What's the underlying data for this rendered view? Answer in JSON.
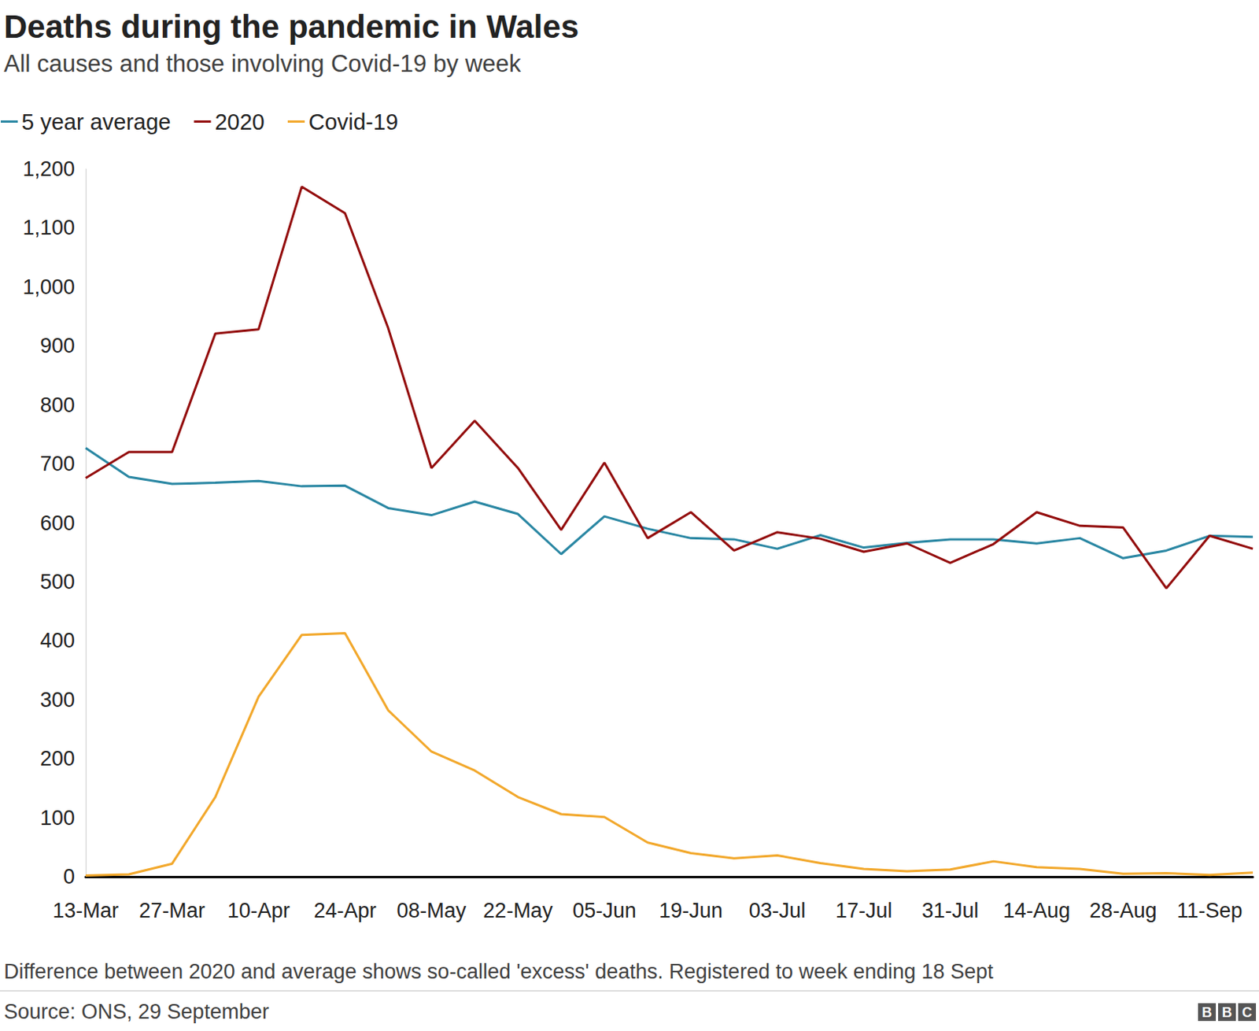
{
  "chart_data": {
    "type": "line",
    "title": "Deaths during the pandemic in Wales",
    "subtitle": "All causes and those involving Covid-19 by week",
    "caption": "Difference between 2020 and average shows so-called 'excess' deaths. Registered to week ending 18 Sept",
    "source": "Source: ONS, 29 September",
    "logo": "BBC",
    "categories": [
      "13-Mar",
      null,
      "27-Mar",
      null,
      "10-Apr",
      null,
      "24-Apr",
      null,
      "08-May",
      null,
      "22-May",
      null,
      "05-Jun",
      null,
      "19-Jun",
      null,
      "03-Jul",
      null,
      "17-Jul",
      null,
      "31-Jul",
      null,
      "14-Aug",
      null,
      "28-Aug",
      null,
      "11-Sep",
      null
    ],
    "series": [
      {
        "name": "5 year average",
        "color": "#2a87a3",
        "values": [
          727,
          678,
          666,
          668,
          671,
          662,
          663,
          625,
          613,
          636,
          615,
          547,
          611,
          590,
          574,
          572,
          556,
          579,
          558,
          566,
          572,
          572,
          565,
          574,
          540,
          553,
          578,
          576
        ]
      },
      {
        "name": "2020",
        "color": "#930d0d",
        "values": [
          676,
          720,
          720,
          921,
          928,
          1170,
          1125,
          930,
          693,
          773,
          693,
          588,
          702,
          574,
          618,
          553,
          584,
          573,
          551,
          565,
          532,
          564,
          618,
          595,
          592,
          489,
          578,
          556
        ]
      },
      {
        "name": "Covid-19",
        "color": "#f2a82c",
        "values": [
          2,
          4,
          22,
          135,
          305,
          410,
          413,
          282,
          212,
          180,
          135,
          106,
          101,
          58,
          40,
          31,
          36,
          23,
          13,
          9,
          12,
          26,
          16,
          13,
          5,
          6,
          3,
          7
        ]
      }
    ],
    "ylim": [
      0,
      1200
    ],
    "yticks": [
      0,
      100,
      200,
      300,
      400,
      500,
      600,
      700,
      800,
      900,
      {
        "value": 1000,
        "label": "1,000"
      },
      {
        "value": 1100,
        "label": "1,100"
      },
      {
        "value": 1200,
        "label": "1,200"
      }
    ],
    "grid": false,
    "legend": "top-left",
    "marker": "none"
  }
}
